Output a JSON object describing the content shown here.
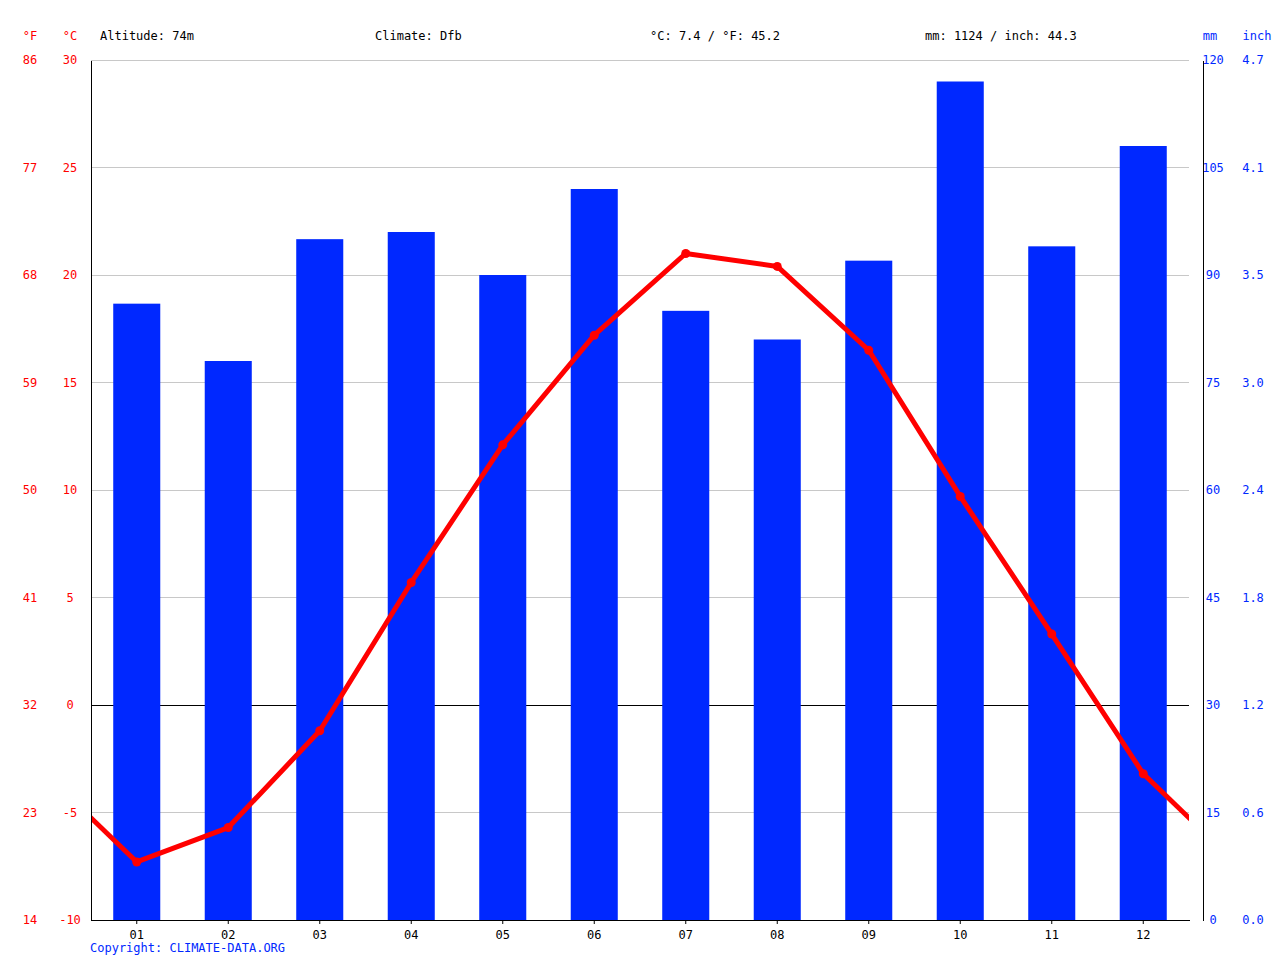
{
  "chart_data": {
    "type": "bar",
    "annotations": [
      "Altitude: 74m",
      "Climate: Dfb",
      "°C: 7.4 / °F: 45.2",
      "mm: 1124 / inch: 44.3"
    ],
    "source": "Copyright: CLIMATE-DATA.ORG",
    "categories": [
      "01",
      "02",
      "03",
      "04",
      "05",
      "06",
      "07",
      "08",
      "09",
      "10",
      "11",
      "12"
    ],
    "series": [
      {
        "type": "bar",
        "axis": "y2",
        "color": "#0028ff",
        "values": [
          86,
          78,
          95,
          96,
          90,
          102,
          85,
          81,
          92,
          117,
          94,
          108
        ]
      },
      {
        "type": "line",
        "color": "#ff0000",
        "marker": "circle",
        "line_style": "solid",
        "values": [
          -7.3,
          -5.7,
          -1.2,
          5.7,
          12.1,
          17.2,
          21.0,
          20.4,
          16.5,
          9.7,
          3.3,
          -3.2
        ]
      }
    ],
    "y_label": "°C",
    "ylim": [
      -10,
      30
    ],
    "yticks": [
      -10,
      -5,
      0,
      5,
      10,
      15,
      20,
      25,
      30
    ],
    "y3_label": "°F",
    "y3lim": [
      14,
      86
    ],
    "y3ticks": [
      14,
      23,
      32,
      41,
      50,
      59,
      68,
      77,
      86
    ],
    "y2_label": "mm",
    "y2lim": [
      0,
      120
    ],
    "y2ticks": [
      0,
      15,
      30,
      45,
      60,
      75,
      90,
      105,
      120
    ],
    "y4_label": "inch",
    "y4lim": [
      0,
      4.72
    ],
    "y4ticks": [
      {
        "value": 0,
        "label": "0.0"
      },
      {
        "value": 0.59,
        "label": "0.6"
      },
      {
        "value": 1.18,
        "label": "1.2"
      },
      {
        "value": 1.77,
        "label": "1.8"
      },
      {
        "value": 2.36,
        "label": "2.4"
      },
      {
        "value": 2.95,
        "label": "3.0"
      },
      {
        "value": 3.54,
        "label": "3.5"
      },
      {
        "value": 4.13,
        "label": "4.1"
      },
      {
        "value": 4.72,
        "label": "4.7"
      }
    ],
    "grid": true
  }
}
